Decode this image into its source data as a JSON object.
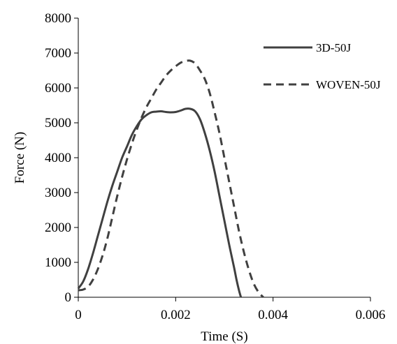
{
  "chart_data": {
    "type": "line",
    "title": "",
    "xlabel": "Time (S)",
    "ylabel": "Force (N)",
    "xlim": [
      0,
      0.006
    ],
    "ylim": [
      0,
      8000
    ],
    "x_ticks": [
      0,
      0.002,
      0.004,
      0.006
    ],
    "x_tick_labels": [
      "0",
      "0.002",
      "0.004",
      "0.006"
    ],
    "y_ticks": [
      0,
      1000,
      2000,
      3000,
      4000,
      5000,
      6000,
      7000,
      8000
    ],
    "y_tick_labels": [
      "0",
      "1000",
      "2000",
      "3000",
      "4000",
      "5000",
      "6000",
      "7000",
      "8000"
    ],
    "grid": false,
    "legend_position": "top-right",
    "series": [
      {
        "name": "3D-50J",
        "style": "solid",
        "color": "#404040",
        "x": [
          0,
          0.0001,
          0.0002,
          0.0003,
          0.0004,
          0.0005,
          0.0006,
          0.0007,
          0.0008,
          0.0009,
          0.001,
          0.0011,
          0.0012,
          0.0013,
          0.0014,
          0.0015,
          0.0016,
          0.0017,
          0.0018,
          0.0019,
          0.002,
          0.0021,
          0.0022,
          0.0023,
          0.0024,
          0.0025,
          0.0026,
          0.0027,
          0.0028,
          0.0029,
          0.003,
          0.0031,
          0.0032,
          0.00325,
          0.0033,
          0.00334
        ],
        "y": [
          250,
          450,
          800,
          1250,
          1750,
          2250,
          2750,
          3200,
          3600,
          4000,
          4320,
          4650,
          4900,
          5100,
          5220,
          5300,
          5320,
          5330,
          5310,
          5300,
          5310,
          5350,
          5400,
          5400,
          5330,
          5100,
          4700,
          4200,
          3600,
          2900,
          2200,
          1500,
          850,
          500,
          200,
          0
        ]
      },
      {
        "name": "WOVEN-50J",
        "style": "dashed",
        "color": "#404040",
        "x": [
          0,
          0.0001,
          0.0002,
          0.0003,
          0.0004,
          0.0005,
          0.0006,
          0.0007,
          0.0008,
          0.0009,
          0.001,
          0.0011,
          0.0012,
          0.0013,
          0.0014,
          0.0015,
          0.0016,
          0.0017,
          0.0018,
          0.0019,
          0.002,
          0.0021,
          0.0022,
          0.0023,
          0.0024,
          0.0025,
          0.0026,
          0.0027,
          0.0028,
          0.0029,
          0.003,
          0.0031,
          0.0032,
          0.0033,
          0.0034,
          0.0035,
          0.0036,
          0.0037,
          0.0038
        ],
        "y": [
          200,
          220,
          300,
          500,
          800,
          1200,
          1700,
          2300,
          2900,
          3450,
          3950,
          4400,
          4800,
          5150,
          5450,
          5700,
          5950,
          6150,
          6350,
          6500,
          6620,
          6720,
          6770,
          6780,
          6700,
          6500,
          6250,
          5850,
          5300,
          4700,
          4000,
          3300,
          2600,
          1900,
          1300,
          800,
          400,
          150,
          0
        ]
      }
    ]
  }
}
